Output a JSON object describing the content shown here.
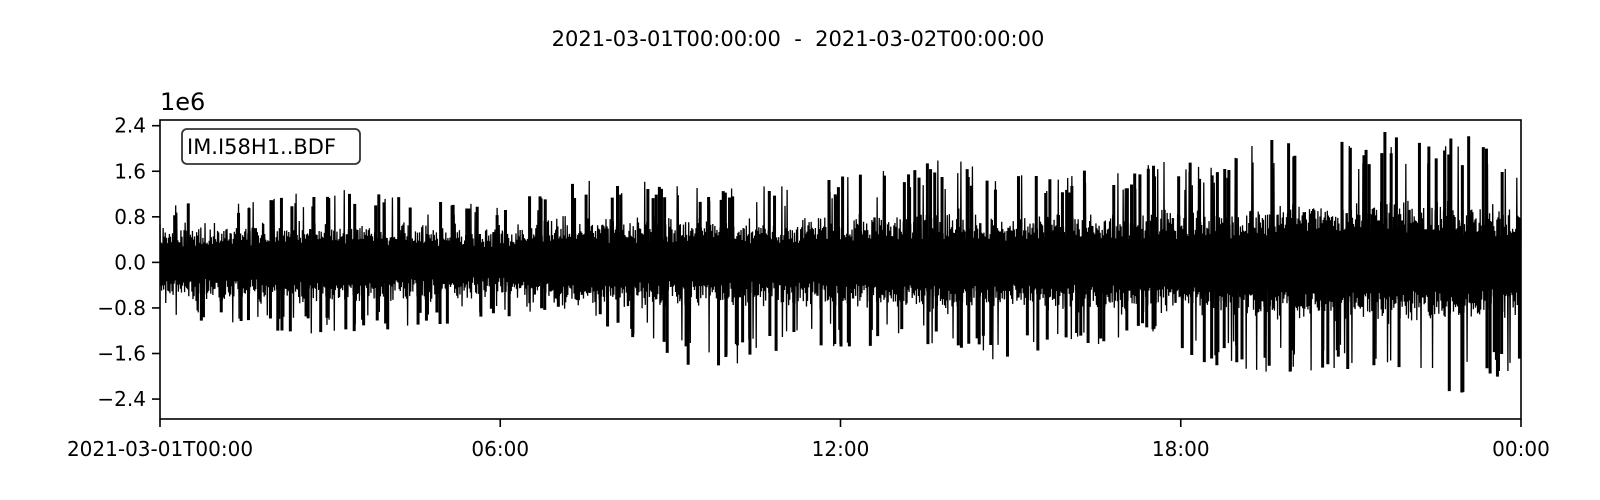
{
  "chart_data": {
    "type": "line",
    "title": "2021-03-01T00:00:00  -  2021-03-02T00:00:00",
    "xlabel": "",
    "ylabel": "",
    "y_multiplier_label": "1e6",
    "legend": "IM.I58H1..BDF",
    "legend_position": "top-left",
    "grid": false,
    "xlim": [
      "2021-03-01T00:00:00",
      "2021-03-02T00:00:00"
    ],
    "ylim": [
      -2.75,
      2.5
    ],
    "x_ticks": [
      "2021-03-01T00:00:00",
      "2021-03-01T06:00:00",
      "2021-03-01T12:00:00",
      "2021-03-01T18:00:00",
      "2021-03-02T00:00:00"
    ],
    "x_tick_labels": [
      "2021-03-01T00:00",
      "06:00",
      "12:00",
      "18:00",
      "00:00"
    ],
    "y_ticks": [
      -2.4,
      -1.6,
      -0.8,
      0.0,
      0.8,
      1.6,
      2.4
    ],
    "y_tick_labels": [
      "−2.4",
      "−1.6",
      "−0.8",
      "0.0",
      "0.8",
      "1.6",
      "2.4"
    ],
    "series": [
      {
        "color": "#000000",
        "envelope": [
          {
            "time": "2021-03-01T00:00:00",
            "max": 1.0,
            "min": -1.0
          },
          {
            "time": "2021-03-01T03:00:00",
            "max": 1.3,
            "min": -1.3
          },
          {
            "time": "2021-03-01T06:00:00",
            "max": 1.0,
            "min": -1.0
          },
          {
            "time": "2021-03-01T07:00:00",
            "max": 1.45,
            "min": -0.8
          },
          {
            "time": "2021-03-01T09:45:00",
            "max": 1.4,
            "min": -2.0
          },
          {
            "time": "2021-03-01T11:00:00",
            "max": 1.35,
            "min": -1.5
          },
          {
            "time": "2021-03-01T14:00:00",
            "max": 1.85,
            "min": -1.5
          },
          {
            "time": "2021-03-01T14:45:00",
            "max": 1.5,
            "min": -1.8
          },
          {
            "time": "2021-03-01T17:45:00",
            "max": 1.8,
            "min": -1.2
          },
          {
            "time": "2021-03-01T18:15:00",
            "max": 1.75,
            "min": -1.8
          },
          {
            "time": "2021-03-01T19:45:00",
            "max": 2.2,
            "min": -2.0
          },
          {
            "time": "2021-03-01T21:45:00",
            "max": 2.3,
            "min": -1.9
          },
          {
            "time": "2021-03-01T23:00:00",
            "max": 2.25,
            "min": -2.4
          },
          {
            "time": "2021-03-02T00:00:00",
            "max": 2.0,
            "min": -1.8
          }
        ],
        "baseline_amplitude": 0.75
      }
    ]
  }
}
